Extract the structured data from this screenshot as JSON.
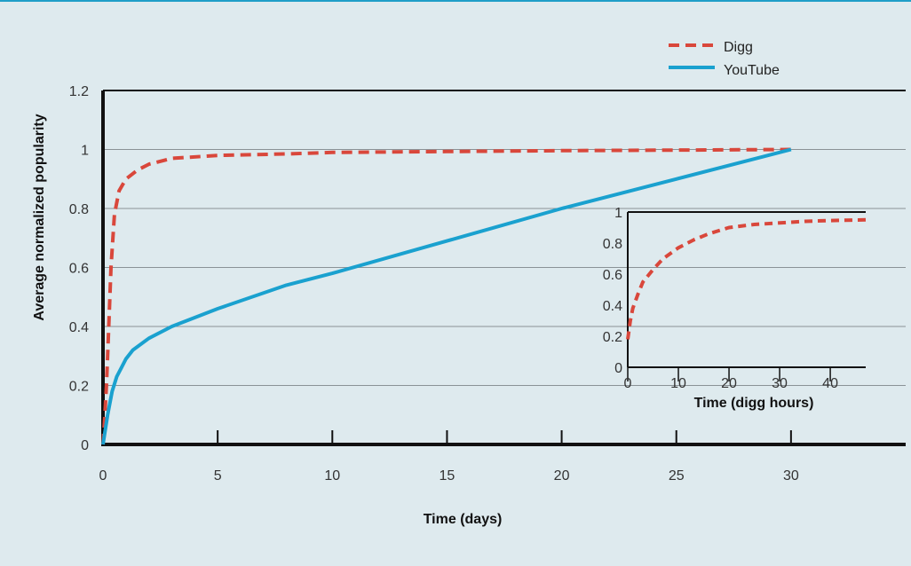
{
  "colors": {
    "background": "#deeaee",
    "digg": "#d9473b",
    "youtube": "#1aa1cf",
    "axis": "#111111",
    "grid": "#8a9296"
  },
  "chart_data": [
    {
      "type": "line",
      "title": "",
      "xlabel": "Time (days)",
      "ylabel": "Average normalized popularity",
      "xlim": [
        0,
        35
      ],
      "ylim": [
        0,
        1.2
      ],
      "x_ticks": [
        0,
        5,
        10,
        15,
        20,
        25,
        30
      ],
      "y_ticks": [
        0,
        0.2,
        0.4,
        0.6,
        0.8,
        1,
        1.2
      ],
      "grid": "horizontal",
      "legend": "top-right",
      "series": [
        {
          "name": "Digg",
          "style": "dashed",
          "x": [
            0,
            0.08,
            0.15,
            0.25,
            0.35,
            0.5,
            0.7,
            1,
            1.5,
            2,
            3,
            5,
            8,
            10,
            15,
            20,
            25,
            30
          ],
          "y": [
            0,
            0.1,
            0.2,
            0.4,
            0.6,
            0.78,
            0.86,
            0.9,
            0.93,
            0.95,
            0.97,
            0.98,
            0.985,
            0.99,
            0.993,
            0.996,
            0.998,
            1.0
          ]
        },
        {
          "name": "YouTube",
          "style": "solid",
          "x": [
            0,
            0.2,
            0.4,
            0.6,
            0.8,
            1.0,
            1.3,
            2,
            3,
            5,
            8,
            10,
            15,
            20,
            25,
            30
          ],
          "y": [
            0,
            0.1,
            0.18,
            0.23,
            0.26,
            0.29,
            0.32,
            0.36,
            0.4,
            0.46,
            0.54,
            0.58,
            0.69,
            0.8,
            0.9,
            1.0
          ]
        }
      ]
    },
    {
      "type": "line",
      "title": "",
      "xlabel": "Time (digg hours)",
      "ylabel": "",
      "xlim": [
        0,
        47
      ],
      "ylim": [
        0,
        1
      ],
      "x_ticks": [
        0,
        10,
        20,
        30,
        40
      ],
      "y_ticks": [
        0,
        0.2,
        0.4,
        0.6,
        0.8,
        1
      ],
      "y_tick_labels": [
        "0",
        "0.2",
        "0.4",
        "0.6",
        "0.8",
        "1"
      ],
      "grid": "none",
      "series": [
        {
          "name": "Digg",
          "style": "dashed",
          "x": [
            0,
            0.5,
            1,
            2,
            3,
            5,
            7,
            10,
            13,
            16,
            20,
            25,
            30,
            35,
            40,
            47
          ],
          "y": [
            0.18,
            0.3,
            0.38,
            0.47,
            0.55,
            0.63,
            0.7,
            0.77,
            0.82,
            0.86,
            0.9,
            0.92,
            0.93,
            0.94,
            0.945,
            0.95
          ]
        }
      ]
    }
  ]
}
